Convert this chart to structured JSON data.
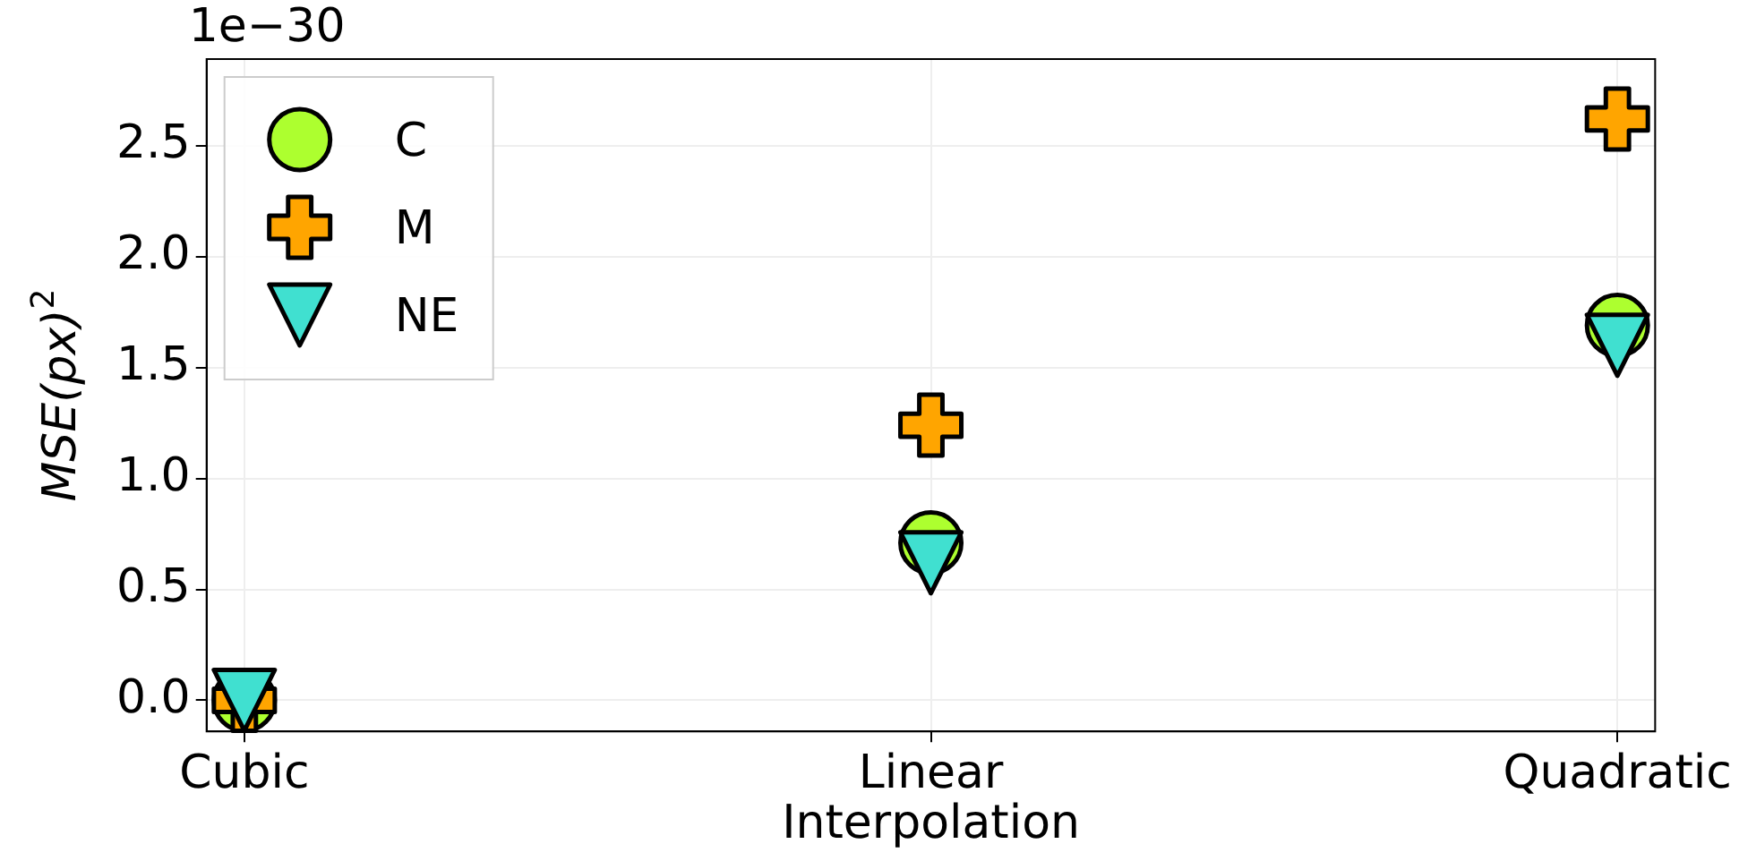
{
  "chart_data": {
    "type": "scatter",
    "categories": [
      "Cubic",
      "Linear",
      "Quadratic"
    ],
    "xlabel": "Interpolation",
    "ylabel": "MSE(px)$^{2}$",
    "annotations": [
      "1e−30"
    ],
    "ylim": [
      -0.14,
      2.89
    ],
    "yticks": [
      {
        "value": 0,
        "label": "0.0"
      },
      {
        "value": 0.5,
        "label": "0.5"
      },
      {
        "value": 1,
        "label": "1.0"
      },
      {
        "value": 1.5,
        "label": "1.5"
      },
      {
        "value": 2,
        "label": "2.0"
      },
      {
        "value": 2.5,
        "label": "2.5"
      }
    ],
    "grid": true,
    "legend": "top left",
    "series": [
      {
        "name": "C",
        "color": "#adff2f",
        "marker": "circle",
        "values": [
          0,
          0.71,
          1.69
        ]
      },
      {
        "name": "M",
        "color": "#ffa500",
        "marker": "cross",
        "values": [
          0,
          1.24,
          2.62
        ]
      },
      {
        "name": "NE",
        "color": "#40e0d0",
        "marker": "triangle",
        "values": [
          0,
          0.62,
          1.6
        ]
      }
    ]
  }
}
